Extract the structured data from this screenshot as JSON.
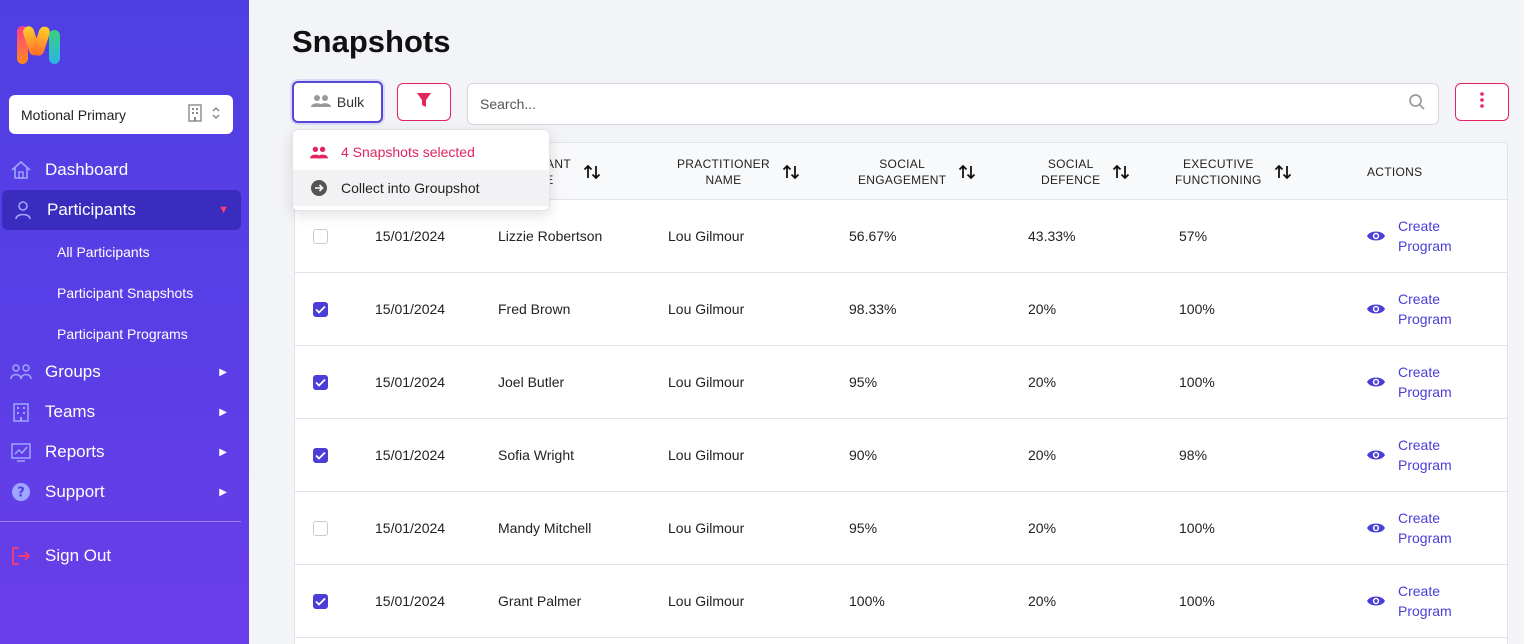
{
  "sidebar": {
    "org_name": "Motional Primary",
    "nav": [
      {
        "label": "Dashboard",
        "icon": "home-icon"
      },
      {
        "label": "Participants",
        "icon": "person-icon"
      },
      {
        "label": "Groups",
        "icon": "group-icon"
      },
      {
        "label": "Teams",
        "icon": "building-icon"
      },
      {
        "label": "Reports",
        "icon": "chart-icon"
      },
      {
        "label": "Support",
        "icon": "help-icon"
      },
      {
        "label": "Sign Out",
        "icon": "sign-out-icon"
      }
    ],
    "sub_items": [
      "All Participants",
      "Participant Snapshots",
      "Participant Programs"
    ]
  },
  "page": {
    "title": "Snapshots",
    "bulk_label": "Bulk",
    "search_placeholder": "Search..."
  },
  "dropdown": {
    "selected_text": "4 Snapshots selected",
    "collect_text": "Collect into Groupshot"
  },
  "table": {
    "headers": {
      "participant_line1": "IPANT",
      "participant_line2": "ME",
      "practitioner_line1": "PRACTITIONER",
      "practitioner_line2": "NAME",
      "social_eng_line1": "SOCIAL",
      "social_eng_line2": "ENGAGEMENT",
      "social_def_line1": "SOCIAL",
      "social_def_line2": "DEFENCE",
      "exec_line1": "EXECUTIVE",
      "exec_line2": "FUNCTIONING",
      "actions": "ACTIONS"
    },
    "action_line1": "Create",
    "action_line2": "Program",
    "rows": [
      {
        "checked": false,
        "date": "15/01/2024",
        "participant": "Lizzie Robertson",
        "practitioner": "Lou Gilmour",
        "social_engagement": "56.67%",
        "social_defence": "43.33%",
        "executive_functioning": "57%"
      },
      {
        "checked": true,
        "date": "15/01/2024",
        "participant": "Fred Brown",
        "practitioner": "Lou Gilmour",
        "social_engagement": "98.33%",
        "social_defence": "20%",
        "executive_functioning": "100%"
      },
      {
        "checked": true,
        "date": "15/01/2024",
        "participant": "Joel Butler",
        "practitioner": "Lou Gilmour",
        "social_engagement": "95%",
        "social_defence": "20%",
        "executive_functioning": "100%"
      },
      {
        "checked": true,
        "date": "15/01/2024",
        "participant": "Sofia Wright",
        "practitioner": "Lou Gilmour",
        "social_engagement": "90%",
        "social_defence": "20%",
        "executive_functioning": "98%"
      },
      {
        "checked": false,
        "date": "15/01/2024",
        "participant": "Mandy Mitchell",
        "practitioner": "Lou Gilmour",
        "social_engagement": "95%",
        "social_defence": "20%",
        "executive_functioning": "100%"
      },
      {
        "checked": true,
        "date": "15/01/2024",
        "participant": "Grant Palmer",
        "practitioner": "Lou Gilmour",
        "social_engagement": "100%",
        "social_defence": "20%",
        "executive_functioning": "100%"
      }
    ]
  },
  "colors": {
    "sidebar_bg": "#5a3ee6",
    "accent": "#4a3ed6",
    "danger": "#e3245d"
  }
}
